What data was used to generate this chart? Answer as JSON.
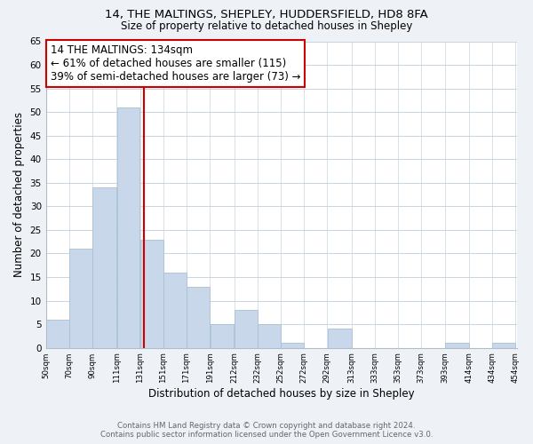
{
  "title1": "14, THE MALTINGS, SHEPLEY, HUDDERSFIELD, HD8 8FA",
  "title2": "Size of property relative to detached houses in Shepley",
  "xlabel": "Distribution of detached houses by size in Shepley",
  "ylabel": "Number of detached properties",
  "bar_edges": [
    50,
    70,
    90,
    111,
    131,
    151,
    171,
    191,
    212,
    232,
    252,
    272,
    292,
    313,
    333,
    353,
    373,
    393,
    414,
    434,
    454
  ],
  "bar_heights": [
    6,
    21,
    34,
    51,
    23,
    16,
    13,
    5,
    8,
    5,
    1,
    0,
    4,
    0,
    0,
    0,
    0,
    1,
    0,
    1
  ],
  "bar_color": "#c8d8ea",
  "bar_edgecolor": "#a8c0d4",
  "reference_line_x": 134,
  "reference_line_color": "#cc0000",
  "annotation_title": "14 THE MALTINGS: 134sqm",
  "annotation_line1": "← 61% of detached houses are smaller (115)",
  "annotation_line2": "39% of semi-detached houses are larger (73) →",
  "annotation_box_facecolor": "white",
  "annotation_box_edgecolor": "#cc0000",
  "ylim": [
    0,
    65
  ],
  "yticks": [
    0,
    5,
    10,
    15,
    20,
    25,
    30,
    35,
    40,
    45,
    50,
    55,
    60,
    65
  ],
  "xtick_labels": [
    "50sqm",
    "70sqm",
    "90sqm",
    "111sqm",
    "131sqm",
    "151sqm",
    "171sqm",
    "191sqm",
    "212sqm",
    "232sqm",
    "252sqm",
    "272sqm",
    "292sqm",
    "313sqm",
    "333sqm",
    "353sqm",
    "373sqm",
    "393sqm",
    "414sqm",
    "434sqm",
    "454sqm"
  ],
  "footer1": "Contains HM Land Registry data © Crown copyright and database right 2024.",
  "footer2": "Contains public sector information licensed under the Open Government Licence v3.0.",
  "background_color": "#eef2f7",
  "plot_bg_color": "#ffffff",
  "grid_color": "#c8d4e0"
}
